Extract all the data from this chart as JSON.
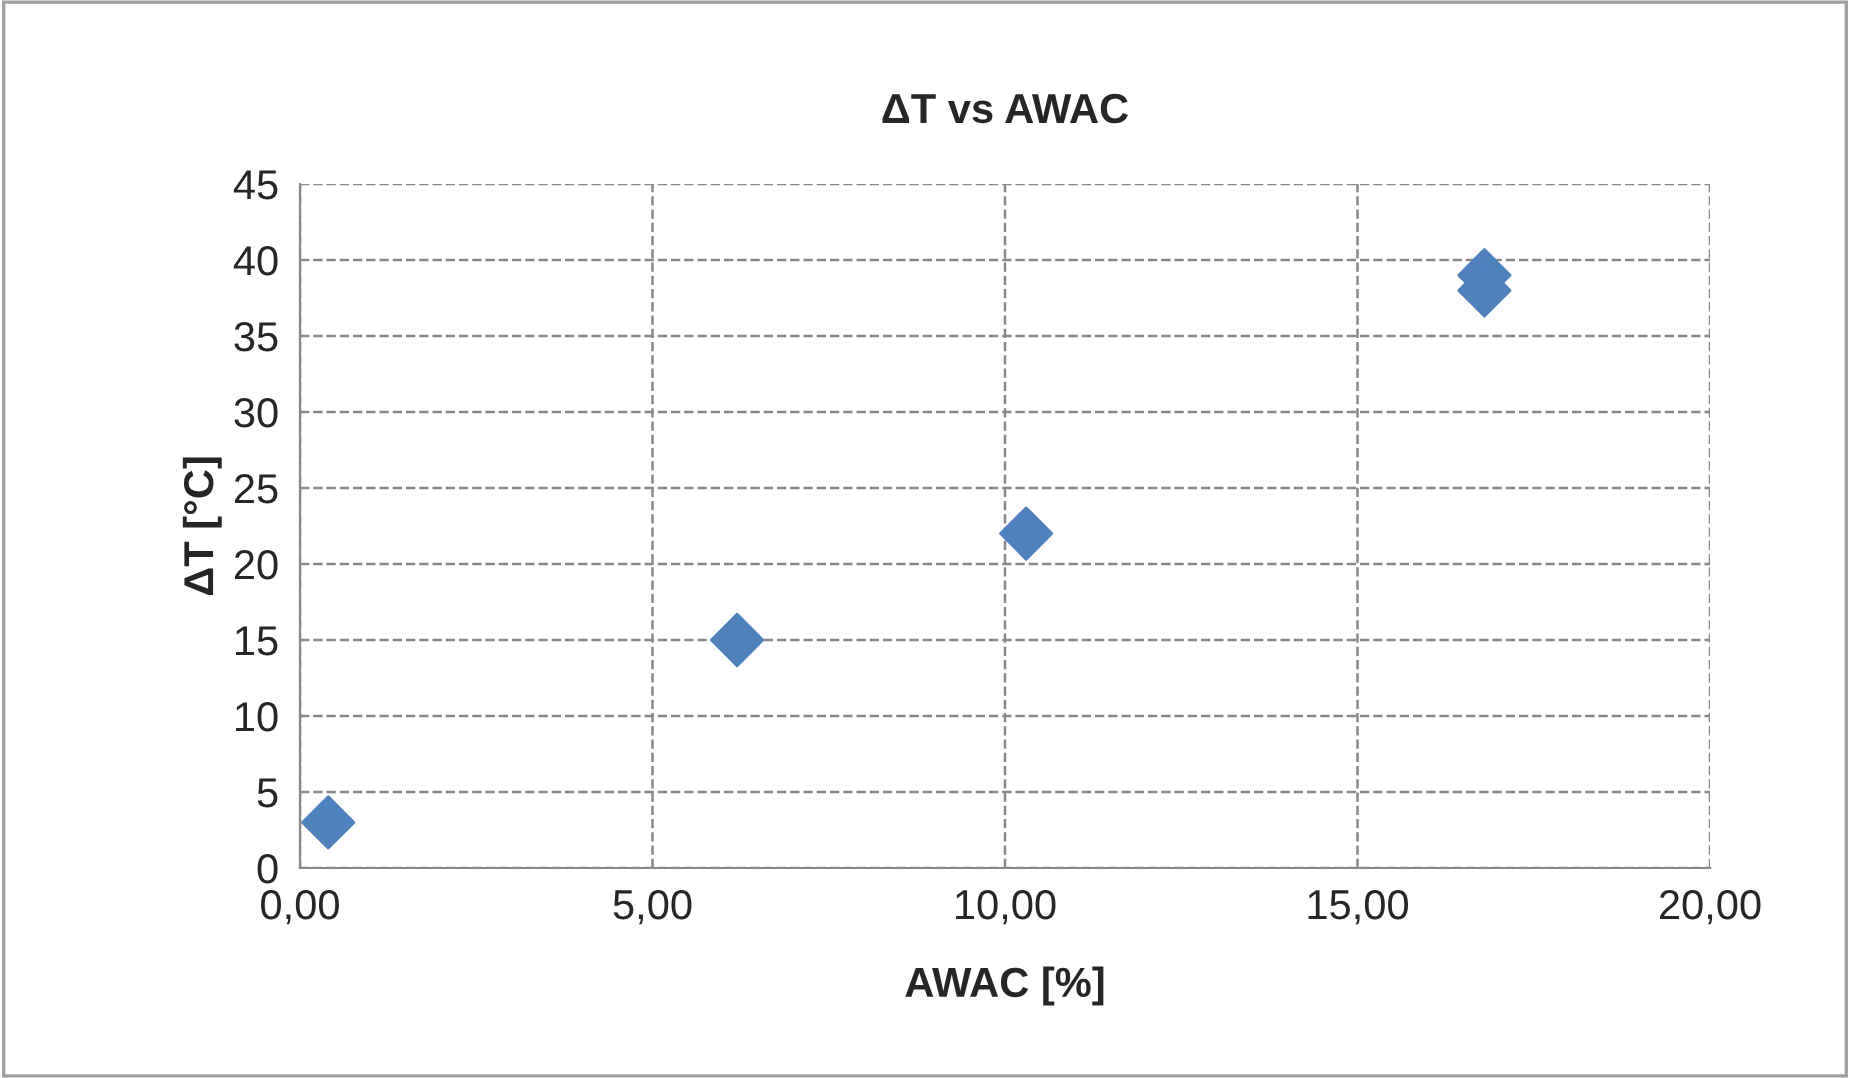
{
  "chart_data": {
    "type": "scatter",
    "title": "ΔT vs AWAC",
    "xlabel": "AWAC [%]",
    "ylabel": "ΔT [°C]",
    "x": [
      0.4,
      6.2,
      10.3,
      16.8,
      16.8
    ],
    "series": [
      {
        "color": "#4f81bd",
        "values": [
          3,
          15,
          22,
          39,
          38
        ]
      }
    ],
    "marker": "diamond",
    "grid": true,
    "line_style": "dashed",
    "xlim": [
      0,
      20
    ],
    "xticks": [
      {
        "value": 0,
        "label": "0,00"
      },
      {
        "value": 5,
        "label": "5,00"
      },
      {
        "value": 10,
        "label": "10,00"
      },
      {
        "value": 15,
        "label": "15,00"
      },
      {
        "value": 20,
        "label": "20,00"
      }
    ],
    "ylim": [
      0,
      45
    ],
    "yticks": [
      0,
      5,
      10,
      15,
      20,
      25,
      30,
      35,
      40,
      45
    ]
  }
}
